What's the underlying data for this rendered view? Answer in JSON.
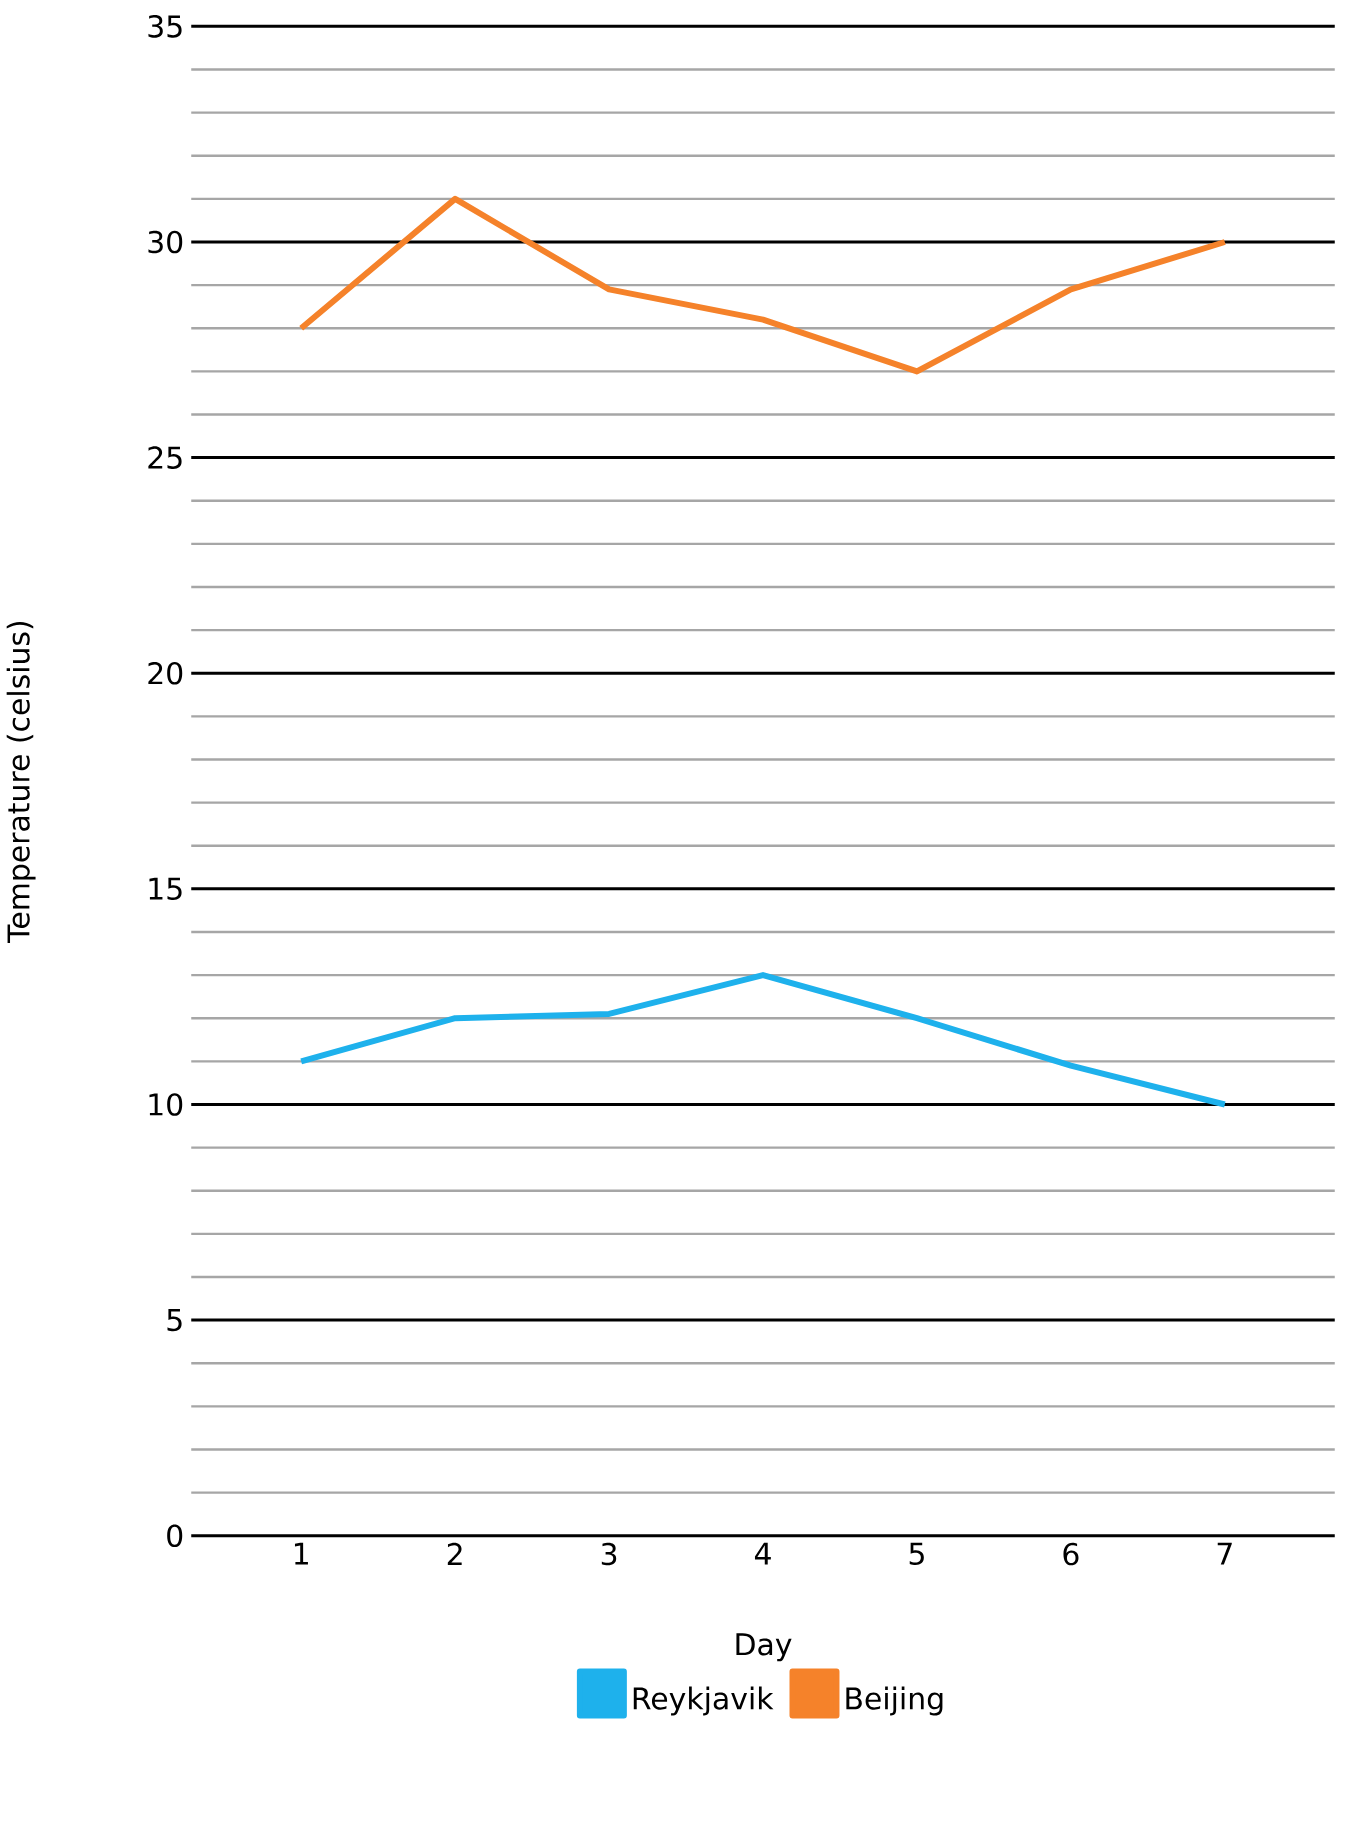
{
  "chart_data": {
    "type": "line",
    "xlabel": "Day",
    "ylabel": "Temperature (celsius)",
    "categories": [
      "1",
      "2",
      "3",
      "4",
      "5",
      "6",
      "7"
    ],
    "series": [
      {
        "name": "Reykjavik",
        "color": "#1eb1ec",
        "values": [
          11,
          12,
          12.1,
          13,
          12,
          10.9,
          10
        ]
      },
      {
        "name": "Beijing",
        "color": "#f5822a",
        "values": [
          28,
          31,
          28.9,
          28.2,
          27,
          28.9,
          30
        ]
      }
    ],
    "ylim": [
      0,
      35
    ],
    "yticks": [
      0,
      5,
      10,
      15,
      20,
      25,
      30,
      35
    ],
    "grid": "y",
    "legend": "bottom",
    "marker": "none",
    "line_style": "solid"
  }
}
